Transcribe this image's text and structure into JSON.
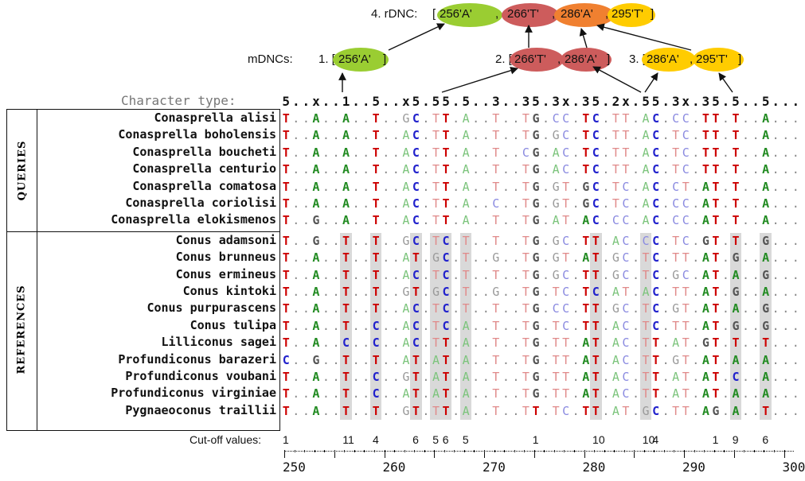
{
  "header": {
    "rdnc_label": "4. rDNC: ",
    "rdnc": {
      "open": "[",
      "item1": "256'A'",
      "sep1": ",",
      "item2": "266'T'",
      "sep2": ",",
      "item3": "286'A'",
      "sep3": ",",
      "item4": "295'T'",
      "close": "]"
    },
    "mdncs_label": "mDNCs:",
    "m1": {
      "prefix": "1. [",
      "item": "256'A'",
      "close": "]"
    },
    "m2": {
      "prefix": "2. [",
      "item1": "266'T'",
      "sep": ",",
      "item2": "286'A'",
      "close": "]"
    },
    "m3": {
      "prefix": "3. [",
      "item1": "286'A'",
      "sep": ",",
      "item2": "295'T'",
      "close": "]"
    },
    "colors": {
      "green": "#9acd32",
      "red": "#cd5c5c",
      "orange": "#f08030",
      "yellow": "#ffcc00"
    }
  },
  "character_type_label": "Character type:",
  "character_type": "5..x..1..5..x5.55.5..3..35.3x.35.2x.55.3x.35.5..5...",
  "groups": {
    "queries": "QUERIES",
    "references": "REFERENCES"
  },
  "rows": [
    {
      "name": "Conasprella alisi",
      "group": "query",
      "seq": "T..A..A..T..GC.TT.A..T..TG.CC.TC.TT.AC.CC.TT.T..A..."
    },
    {
      "name": "Conasprella boholensis",
      "group": "query",
      "seq": "T..A..A..T..AC.TT.A..T..TG.GC.TC.TT.AC.TC.TT.T..A..."
    },
    {
      "name": "Conasprella boucheti",
      "group": "query",
      "seq": "T..A..A..T..AC.TT.A..T..CG.AC.TC.TT.AC.TC.TT.T..A..."
    },
    {
      "name": "Conasprella centurio",
      "group": "query",
      "seq": "T..A..A..T..AC.TT.A..T..TG.AC.TC.TT.AC.TC.TT.T..A..."
    },
    {
      "name": "Conasprella comatosa",
      "group": "query",
      "seq": "T..A..A..T..AC.TT.A..T..TG.GT.GC.TC.AC.CT.AT.T..A..."
    },
    {
      "name": "Conasprella coriolisi",
      "group": "query",
      "seq": "T..A..A..T..AC.TT.A..C..TG.GT.GC.TC.AC.CC.AT.T..A..."
    },
    {
      "name": "Conasprella elokismenos",
      "group": "query",
      "seq": "T..G..A..T..AC.TT.A..T..TG.AT.AC.CC.AC.CC.AT.T..A..."
    },
    {
      "name": "Conus adamsoni",
      "group": "reference",
      "seq": "T..G..T..T..GC.TC.T..T..TG.GC.TT.AC.CC.TC.GT.T..G..."
    },
    {
      "name": "Conus brunneus",
      "group": "reference",
      "seq": "T..A..T..T..AT.GC.T..G..TG.GT.AT.GC.TC.TT.AT.G..A..."
    },
    {
      "name": "Conus ermineus",
      "group": "reference",
      "seq": "T..A..T..T..AC.TC.T..T..TG.GC.TT.GC.TC.GC.AT.A..G..."
    },
    {
      "name": "Conus kintoki",
      "group": "reference",
      "seq": "T..A..T..T..GT.GC.T..G..TG.TC.TC.AT.AC.TT.AT.G..A..."
    },
    {
      "name": "Conus purpurascens",
      "group": "reference",
      "seq": "T..A..T..T..AC.TC.T..T..TG.CC.TT.GC.TC.GT.AT.A..G..."
    },
    {
      "name": "Conus tulipa",
      "group": "reference",
      "seq": "T..A..T..C..AC.TC.A..T..TG.TC.TT.AC.TC.TT.AT.G..G..."
    },
    {
      "name": "Lilliconus sagei",
      "group": "reference",
      "seq": "T..A..C..C..AC.TT.A..T..TG.TT.AT.AC.TT.AT.GT.T..T..."
    },
    {
      "name": "Profundiconus barazeri",
      "group": "reference",
      "seq": "C..G..T..T..AT.AT.A..T..TG.TT.AT.AC.TT.GT.AT.A..A..."
    },
    {
      "name": "Profundiconus voubani",
      "group": "reference",
      "seq": "T..A..T..C..GT.AT.A..T..TG.TT.AT.AC.TT.AT.AT.C..A..."
    },
    {
      "name": "Profundiconus virginiae",
      "group": "reference",
      "seq": "T..A..T..C..AT.AT.A..T..TG.TT.AT.AC.TT.AT.AT.A..A..."
    },
    {
      "name": "Pygnaeoconus traillii",
      "group": "reference",
      "seq": "T..A..T..T..GT.TT.A..T..TT.TC.TT.AT.GC.TT.AG.A..T..."
    }
  ],
  "cutoff_label": "Cut-off values:",
  "cutoffs": [
    {
      "col": 0,
      "value": "1"
    },
    {
      "col": 6,
      "value": "11"
    },
    {
      "col": 9,
      "value": "4"
    },
    {
      "col": 13,
      "value": "6"
    },
    {
      "col": 15,
      "value": "5"
    },
    {
      "col": 16,
      "value": "6"
    },
    {
      "col": 18,
      "value": "5"
    },
    {
      "col": 25,
      "value": "1"
    },
    {
      "col": 31,
      "value": "10"
    },
    {
      "col": 36,
      "value": "10"
    },
    {
      "col": 37,
      "value": "4"
    },
    {
      "col": 43,
      "value": "1"
    },
    {
      "col": 45,
      "value": "9"
    },
    {
      "col": 48,
      "value": "6"
    }
  ],
  "axis": {
    "start": 250,
    "labels": [
      "250",
      "260",
      "270",
      "280",
      "290",
      "300"
    ]
  },
  "highlight_cols": [
    6,
    9,
    13,
    15,
    16,
    18,
    31,
    36,
    45,
    48
  ],
  "letter_colors": {
    "T": "#cc0000",
    "A": "#228b22",
    "C": "#2222cc",
    "G": "#555555"
  }
}
